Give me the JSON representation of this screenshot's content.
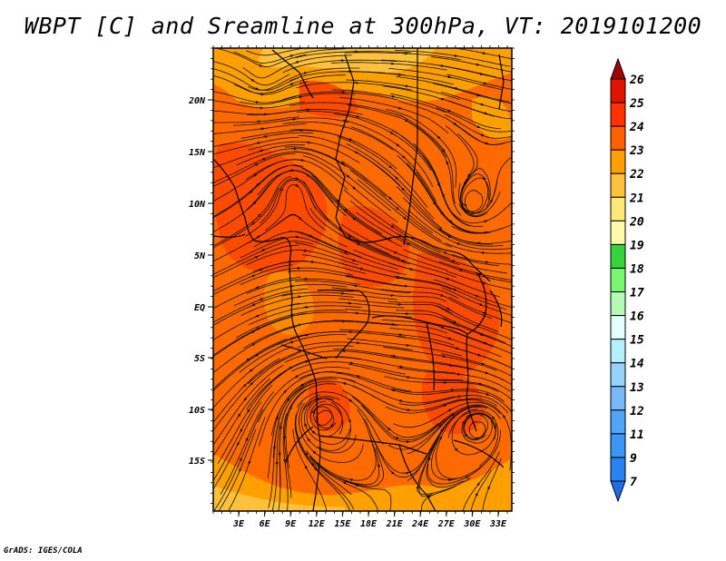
{
  "title": "WBPT [C] and Sreamline at 300hPa, VT: 2019101200",
  "footer": "GrADS: IGES/COLA",
  "map": {
    "lat_ticks": [
      "20N",
      "15N",
      "10N",
      "5N",
      "EQ",
      "5S",
      "10S",
      "15S"
    ],
    "lon_ticks": [
      "3E",
      "6E",
      "9E",
      "12E",
      "15E",
      "18E",
      "21E",
      "24E",
      "27E",
      "30E",
      "33E"
    ]
  },
  "colorbar": {
    "levels": [
      "7",
      "9",
      "11",
      "12",
      "13",
      "14",
      "15",
      "16",
      "17",
      "18",
      "19",
      "20",
      "21",
      "22",
      "23",
      "24",
      "25",
      "26"
    ],
    "colors": [
      "#1e6ee6",
      "#2882f0",
      "#3c96f5",
      "#50a5f5",
      "#78b9fa",
      "#96d2fa",
      "#b4f0fa",
      "#e1ffff",
      "#b4fab4",
      "#78f573",
      "#37d23c",
      "#fffaaa",
      "#ffe878",
      "#ffc03c",
      "#ffa000",
      "#ff6000",
      "#ff3200",
      "#e11400",
      "#a50000"
    ]
  },
  "colors": {
    "field_base": "#ff6a00",
    "field_warm": "#ff4a00",
    "field_cool": "#ffa000",
    "field_coolest": "#ffc03c"
  }
}
